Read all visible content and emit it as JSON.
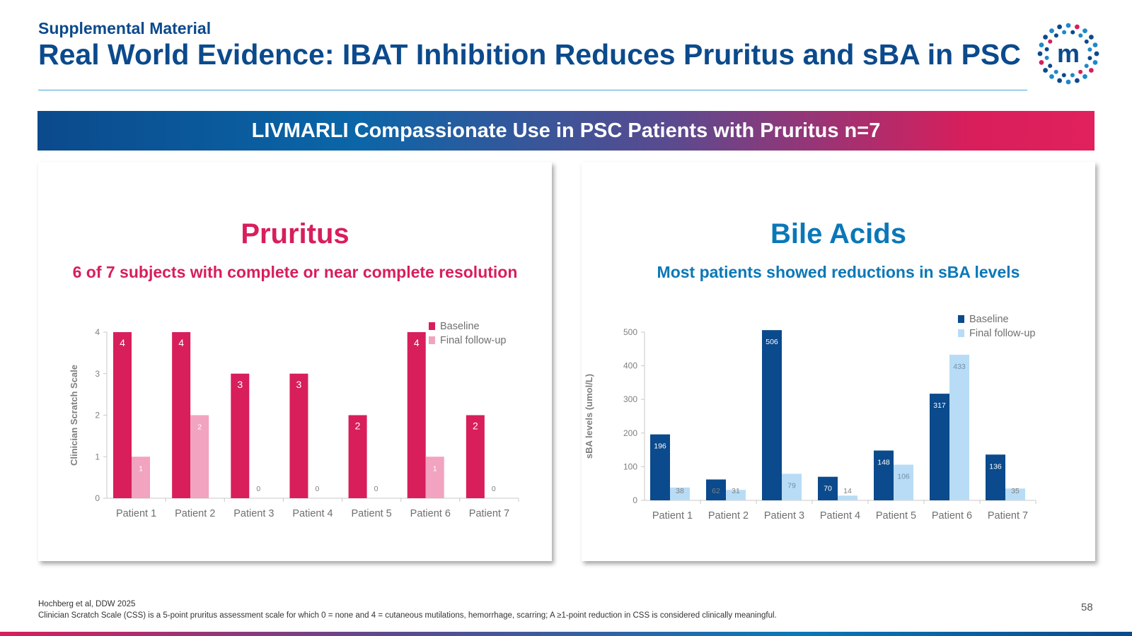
{
  "header": {
    "eyebrow": "Supplemental Material",
    "title": "Real World Evidence: IBAT Inhibition Reduces Pruritus and sBA in PSC"
  },
  "logo": {
    "letter": "m",
    "colors": {
      "dot_dark": "#0b4a8c",
      "dot_mid": "#1f88c8",
      "dot_accent": "#d81e5b"
    }
  },
  "banner": {
    "text": "LIVMARLI Compassionate Use in PSC Patients with Pruritus n=7"
  },
  "panels": {
    "pruritus": {
      "title": "Pruritus",
      "subtitle": "6 of 7 subjects with complete or near complete resolution"
    },
    "bile_acids": {
      "title": "Bile Acids",
      "subtitle": "Most patients showed reductions in sBA levels"
    }
  },
  "chart_data": [
    {
      "type": "bar",
      "ylabel": "Clinician Scratch Scale",
      "xlabel": "",
      "ylim": [
        0,
        4
      ],
      "yticks": [
        0,
        1,
        2,
        3,
        4
      ],
      "legend_position": "top-right",
      "grid": false,
      "categories": [
        "Patient 1",
        "Patient 2",
        "Patient 3",
        "Patient 4",
        "Patient 5",
        "Patient 6",
        "Patient 7"
      ],
      "series": [
        {
          "name": "Baseline",
          "values": [
            4,
            4,
            3,
            3,
            2,
            4,
            2
          ],
          "color": "#d81e5b",
          "labels": [
            "4",
            "4",
            "3",
            "3",
            "2",
            "4",
            "2"
          ]
        },
        {
          "name": "Final follow-up",
          "values": [
            1,
            2,
            0,
            0,
            0,
            1,
            0
          ],
          "color": "#f2a3c0",
          "labels": [
            "1",
            "2",
            "0",
            "0",
            "0",
            "1",
            "0"
          ]
        }
      ]
    },
    {
      "type": "bar",
      "ylabel": "sBA levels (umol/L)",
      "xlabel": "",
      "ylim": [
        0,
        500
      ],
      "yticks": [
        0,
        100,
        200,
        300,
        400,
        500
      ],
      "legend_position": "top-right",
      "grid": false,
      "categories": [
        "Patient 1",
        "Patient 2",
        "Patient 3",
        "Patient 4",
        "Patient 5",
        "Patient 6",
        "Patient 7"
      ],
      "series": [
        {
          "name": "Baseline",
          "values": [
            196,
            62,
            506,
            70,
            148,
            317,
            136
          ],
          "color": "#0b4a8c",
          "labels": [
            "196",
            "62",
            "506",
            "70",
            "148",
            "317",
            "136"
          ]
        },
        {
          "name": "Final follow-up",
          "values": [
            38,
            31,
            79,
            14,
            106,
            433,
            35
          ],
          "color": "#b8dcf5",
          "labels": [
            "38",
            "31",
            "79",
            "14",
            "106",
            "433",
            "35"
          ]
        }
      ]
    }
  ],
  "footnotes": {
    "line1": "Hochberg et al, DDW 2025",
    "line2": "Clinician Scratch Scale (CSS) is a 5-point pruritus assessment scale for which 0 = none and 4 = cutaneous mutilations, hemorrhage, scarring; A ≥1-point reduction in CSS is considered clinically meaningful."
  },
  "page_number": "58"
}
